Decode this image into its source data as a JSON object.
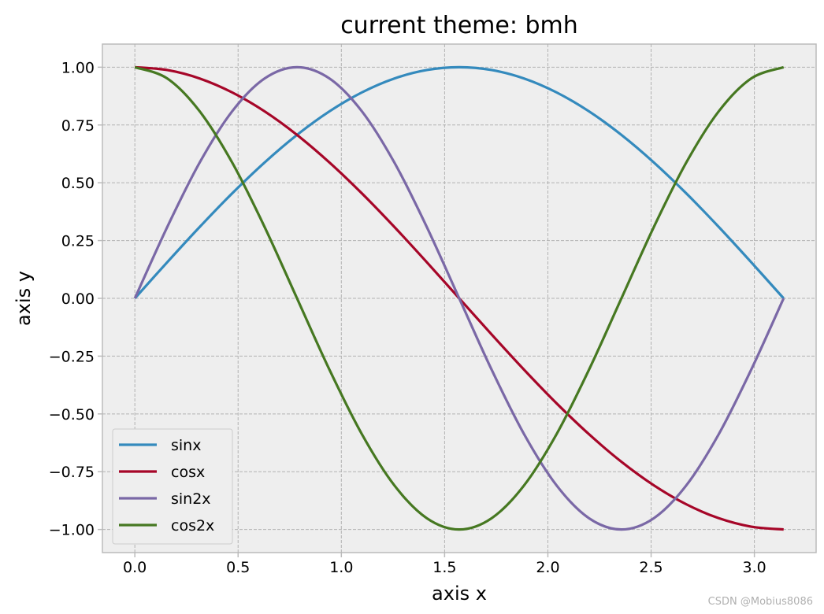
{
  "chart_data": {
    "type": "line",
    "title": "current theme: bmh",
    "xlabel": "axis x",
    "ylabel": "axis y",
    "xlim": [
      -0.157,
      3.299
    ],
    "ylim": [
      -1.1,
      1.1
    ],
    "xticks": [
      0.0,
      0.5,
      1.0,
      1.5,
      2.0,
      2.5,
      3.0
    ],
    "xtick_labels": [
      "0.0",
      "0.5",
      "1.0",
      "1.5",
      "2.0",
      "2.5",
      "3.0"
    ],
    "yticks": [
      1.0,
      0.75,
      0.5,
      0.25,
      0.0,
      -0.25,
      -0.5,
      -0.75,
      -1.0
    ],
    "ytick_labels": [
      "1.00",
      "0.75",
      "0.50",
      "0.25",
      "0.00",
      "−0.25",
      "−0.50",
      "−0.75",
      "−1.00"
    ],
    "grid": true,
    "legend_position": "lower-left",
    "x": [
      0.0,
      0.1571,
      0.3142,
      0.4712,
      0.6283,
      0.7854,
      0.9425,
      1.0996,
      1.2566,
      1.4137,
      1.5708,
      1.7279,
      1.885,
      2.042,
      2.1991,
      2.3562,
      2.5133,
      2.6704,
      2.8274,
      2.9845,
      3.1416
    ],
    "series": [
      {
        "name": "sinx",
        "color": "#348abd",
        "values": [
          0.0,
          0.1564,
          0.309,
          0.454,
          0.5878,
          0.7071,
          0.809,
          0.891,
          0.9511,
          0.9877,
          1.0,
          0.9877,
          0.9511,
          0.891,
          0.809,
          0.7071,
          0.5878,
          0.454,
          0.309,
          0.1564,
          0.0
        ]
      },
      {
        "name": "cosx",
        "color": "#a60628",
        "values": [
          1.0,
          0.9877,
          0.9511,
          0.891,
          0.809,
          0.7071,
          0.5878,
          0.454,
          0.309,
          0.1564,
          0.0,
          -0.1564,
          -0.309,
          -0.454,
          -0.5878,
          -0.7071,
          -0.809,
          -0.891,
          -0.9511,
          -0.9877,
          -1.0
        ]
      },
      {
        "name": "sin2x",
        "color": "#7a68a6",
        "values": [
          0.0,
          0.309,
          0.5878,
          0.809,
          0.9511,
          1.0,
          0.9511,
          0.809,
          0.5878,
          0.309,
          0.0,
          -0.309,
          -0.5878,
          -0.809,
          -0.9511,
          -1.0,
          -0.9511,
          -0.809,
          -0.5878,
          -0.309,
          0.0
        ]
      },
      {
        "name": "cos2x",
        "color": "#467821",
        "values": [
          1.0,
          0.9511,
          0.809,
          0.5878,
          0.309,
          0.0,
          -0.309,
          -0.5878,
          -0.809,
          -0.9511,
          -1.0,
          -0.9511,
          -0.809,
          -0.5878,
          -0.309,
          0.0,
          0.309,
          0.5878,
          0.809,
          0.9511,
          1.0
        ]
      }
    ],
    "colors": {
      "plot_background": "#eeeeee",
      "grid": "#b2b2b2",
      "spine": "#bcbcbc"
    }
  },
  "watermark": "CSDN @Mobius8086"
}
